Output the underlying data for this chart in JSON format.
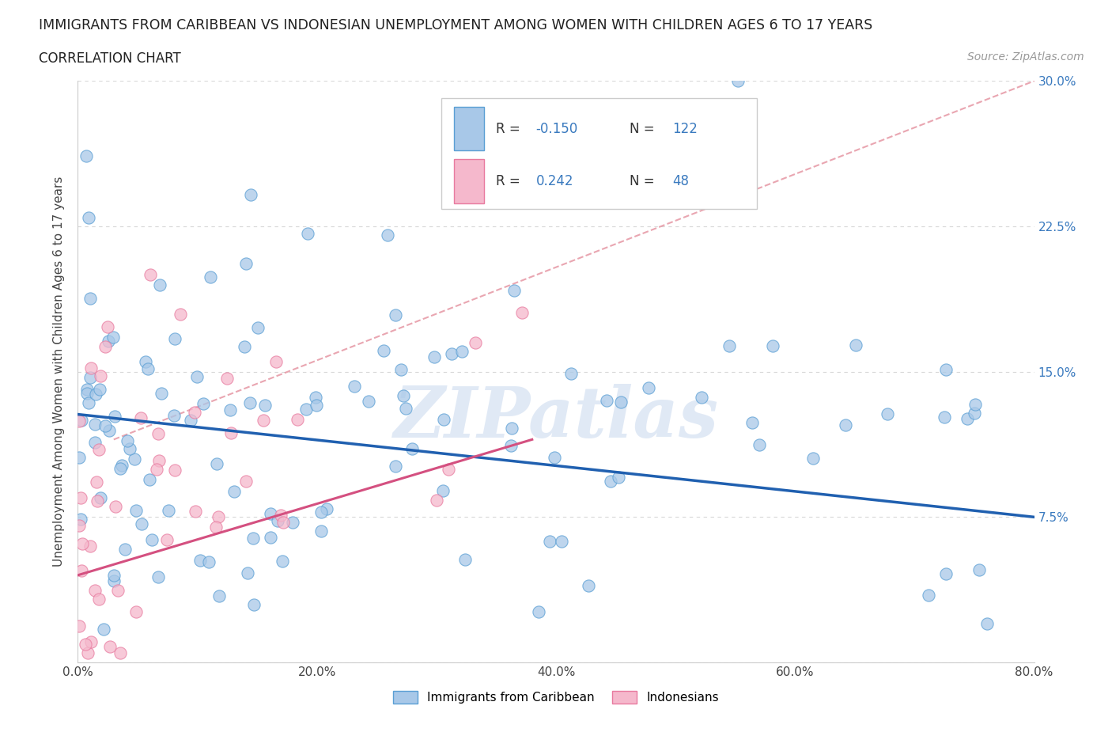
{
  "title": "IMMIGRANTS FROM CARIBBEAN VS INDONESIAN UNEMPLOYMENT AMONG WOMEN WITH CHILDREN AGES 6 TO 17 YEARS",
  "subtitle": "CORRELATION CHART",
  "source": "Source: ZipAtlas.com",
  "ylabel": "Unemployment Among Women with Children Ages 6 to 17 years",
  "xlim": [
    0.0,
    0.8
  ],
  "ylim": [
    0.0,
    0.3
  ],
  "xticks": [
    0.0,
    0.2,
    0.4,
    0.6,
    0.8
  ],
  "yticks": [
    0.0,
    0.075,
    0.15,
    0.225,
    0.3
  ],
  "ytick_labels_right": [
    "30.0%",
    "22.5%",
    "15.0%",
    "7.5%",
    ""
  ],
  "ytick_labels_left": [
    "",
    "",
    "",
    "",
    ""
  ],
  "xtick_labels": [
    "0.0%",
    "20.0%",
    "40.0%",
    "60.0%",
    "80.0%"
  ],
  "caribbean_color": "#a8c8e8",
  "indonesian_color": "#f5b8cc",
  "caribbean_edge_color": "#5a9fd4",
  "indonesian_edge_color": "#e87a9f",
  "caribbean_line_color": "#2060b0",
  "indonesian_line_color": "#d45080",
  "trendline_dash_color": "#e08090",
  "R_caribbean": -0.15,
  "N_caribbean": 122,
  "R_indonesian": 0.242,
  "N_indonesian": 48,
  "watermark_text": "ZIPatlas",
  "background_color": "#ffffff",
  "grid_color": "#d8d8d8",
  "legend_text_color": "#3a7abf",
  "car_line_y0": 0.128,
  "car_line_y1": 0.075,
  "ind_line_y0": 0.045,
  "ind_line_y1": 0.115,
  "dash_line_x0": 0.03,
  "dash_line_y0": 0.115,
  "dash_line_x1": 0.8,
  "dash_line_y1": 0.3
}
